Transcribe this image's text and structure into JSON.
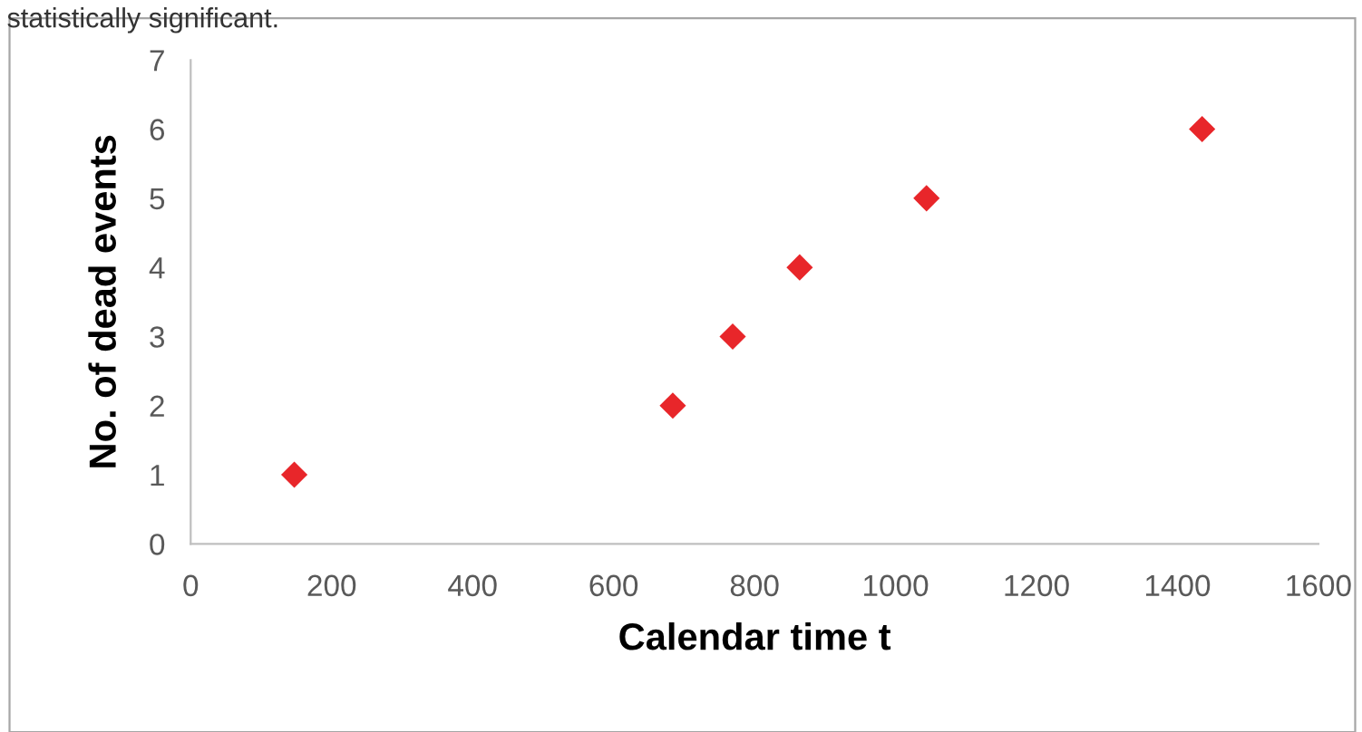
{
  "chart_data": {
    "type": "scatter",
    "annotations": [
      "statistically significant."
    ],
    "xlabel": "Calendar time t",
    "ylabel": "No. of dead events",
    "x": [
      147,
      684,
      769,
      864,
      1044,
      1435
    ],
    "values": [
      1,
      2,
      3,
      4,
      5,
      6
    ],
    "color": "#e8262a",
    "marker": "diamond",
    "xlim": [
      0,
      1600
    ],
    "xticks": [
      0,
      200,
      400,
      600,
      800,
      1000,
      1200,
      1400,
      1600
    ],
    "ylim": [
      0,
      7
    ],
    "yticks": [
      0,
      1,
      2,
      3,
      4,
      5,
      6,
      7
    ],
    "grid": false,
    "legend": false
  }
}
